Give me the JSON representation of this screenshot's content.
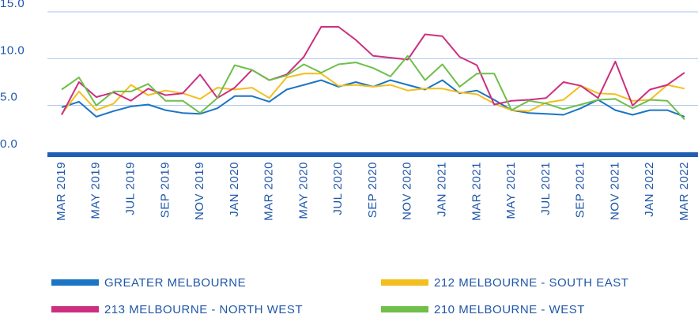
{
  "chart_data": {
    "type": "line",
    "categories": [
      "MAR 2019",
      null,
      "MAY 2019",
      null,
      "JUL 2019",
      null,
      "SEP 2019",
      null,
      "NOV 2019",
      null,
      "JAN 2020",
      null,
      "MAR 2020",
      null,
      "MAY 2020",
      null,
      "JUL 2020",
      null,
      "SEP 2020",
      null,
      "NOV 2020",
      null,
      "JAN 2021",
      null,
      "MAR 2021",
      null,
      "MAY 2021",
      null,
      "JUL 2021",
      null,
      "SEP 2021",
      null,
      "NOV 2021",
      null,
      "JAN 2022",
      null,
      "MAR 2022"
    ],
    "series": [
      {
        "name": "GREATER MELBOURNE",
        "color": "#1b75c4",
        "values": [
          4.8,
          5.4,
          3.8,
          4.4,
          4.9,
          5.1,
          4.5,
          4.2,
          4.1,
          4.7,
          6.0,
          6.0,
          5.4,
          6.7,
          7.2,
          7.7,
          7.0,
          7.5,
          7.0,
          7.7,
          7.2,
          6.7,
          7.7,
          6.3,
          6.6,
          5.6,
          4.5,
          4.2,
          4.1,
          4.0,
          4.7,
          5.6,
          4.5,
          4.0,
          4.5,
          4.5,
          3.8
        ]
      },
      {
        "name": "212 MELBOURNE - SOUTH EAST",
        "color": "#f3bf1e",
        "values": [
          4.1,
          6.5,
          4.5,
          5.2,
          7.2,
          6.1,
          6.6,
          6.3,
          5.7,
          6.9,
          6.7,
          6.9,
          5.8,
          8.0,
          8.4,
          8.4,
          7.1,
          7.2,
          7.0,
          7.2,
          6.6,
          6.8,
          6.8,
          6.4,
          6.2,
          5.2,
          4.5,
          4.4,
          5.3,
          5.6,
          7.1,
          6.3,
          6.2,
          5.5,
          5.6,
          7.2,
          6.8
        ]
      },
      {
        "name": "213 MELBOURNE - NORTH WEST",
        "color": "#cc2f7f",
        "values": [
          4.0,
          7.5,
          5.9,
          6.4,
          5.5,
          6.8,
          6.1,
          6.3,
          8.3,
          5.8,
          6.9,
          8.8,
          7.7,
          8.3,
          10.2,
          13.4,
          13.4,
          12.0,
          10.3,
          10.1,
          9.9,
          12.6,
          12.4,
          10.2,
          9.3,
          5.1,
          5.5,
          5.6,
          5.8,
          7.5,
          7.1,
          5.8,
          9.7,
          5.0,
          6.7,
          7.2,
          8.5
        ]
      },
      {
        "name": "210 MELBOURNE - WEST",
        "color": "#6fbf4a",
        "values": [
          6.7,
          8.0,
          5.0,
          6.5,
          6.5,
          7.3,
          5.5,
          5.5,
          4.2,
          5.8,
          9.3,
          8.8,
          7.7,
          8.2,
          9.4,
          8.5,
          9.4,
          9.6,
          9.0,
          8.1,
          10.3,
          7.7,
          9.4,
          7.0,
          8.4,
          8.4,
          4.5,
          5.5,
          5.2,
          4.6,
          5.1,
          5.6,
          5.7,
          4.7,
          5.6,
          5.5,
          3.5
        ]
      }
    ],
    "ylim": [
      0,
      15
    ],
    "yticks": [
      {
        "value": 0,
        "label": "0.0"
      },
      {
        "value": 5,
        "label": "5.0"
      },
      {
        "value": 10,
        "label": "10.0"
      },
      {
        "value": 15,
        "label": "15.0"
      }
    ],
    "grid": true
  }
}
